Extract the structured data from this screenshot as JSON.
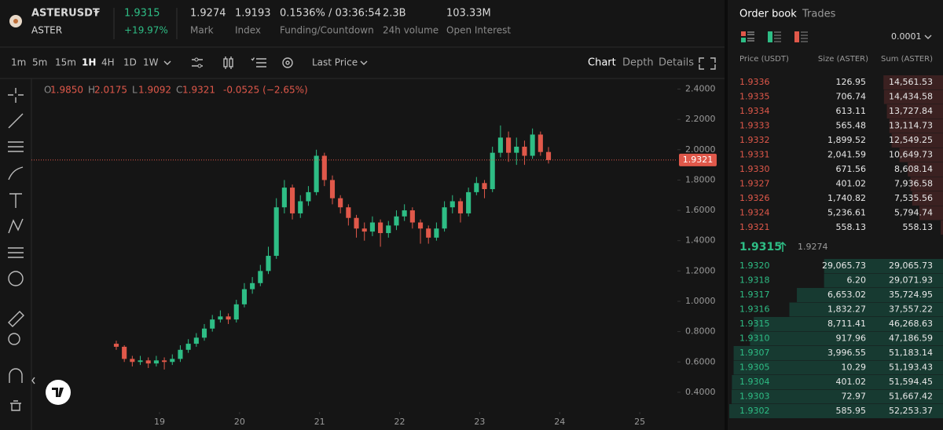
{
  "header": {
    "symbol": "ASTERUSDT",
    "base": "ASTER",
    "last_price": "1.9315",
    "change": "+19.97%",
    "stats": [
      {
        "value": "1.9274",
        "label": "Mark"
      },
      {
        "value": "1.9193",
        "label": "Index"
      },
      {
        "value": "0.1536% / 03:36:54",
        "label": "Funding/Countdown"
      },
      {
        "value": "2.3B",
        "label": "24h volume"
      },
      {
        "value": "103.33M",
        "label": "Open Interest"
      }
    ]
  },
  "toolbar": {
    "intervals": [
      "1m",
      "5m",
      "15m",
      "1H",
      "4H",
      "1D",
      "1W"
    ],
    "active_interval": 3,
    "price_type": "Last Price",
    "views": [
      "Chart",
      "Depth",
      "Details"
    ],
    "active_view": 0
  },
  "chart_data": {
    "type": "candlestick",
    "x": [
      18.46,
      18.56,
      18.66,
      18.76,
      18.86,
      18.96,
      19.06,
      19.16,
      19.26,
      19.36,
      19.46,
      19.56,
      19.66,
      19.76,
      19.86,
      19.96,
      20.06,
      20.16,
      20.26,
      20.36,
      20.46,
      20.56,
      20.66,
      20.76,
      20.86,
      20.96,
      21.06,
      21.16,
      21.26,
      21.36,
      21.46,
      21.56,
      21.66,
      21.76,
      21.86,
      21.96,
      22.06,
      22.16,
      22.26,
      22.36,
      22.46,
      22.56,
      22.66,
      22.76,
      22.86,
      22.96,
      23.06,
      23.16,
      23.26,
      23.36,
      23.46,
      23.56,
      23.66,
      23.76,
      23.86
    ],
    "open": [
      0.72,
      0.7,
      0.62,
      0.6,
      0.61,
      0.59,
      0.61,
      0.6,
      0.62,
      0.68,
      0.72,
      0.76,
      0.82,
      0.88,
      0.9,
      0.88,
      0.98,
      1.08,
      1.12,
      1.2,
      1.3,
      1.62,
      1.75,
      1.58,
      1.66,
      1.72,
      1.96,
      1.8,
      1.68,
      1.62,
      1.55,
      1.48,
      1.46,
      1.52,
      1.45,
      1.5,
      1.56,
      1.6,
      1.52,
      1.48,
      1.42,
      1.48,
      1.62,
      1.66,
      1.58,
      1.72,
      1.78,
      1.74,
      1.98,
      2.08,
      1.98,
      2.02,
      1.96,
      2.1,
      1.985
    ],
    "high": [
      0.74,
      0.71,
      0.64,
      0.64,
      0.63,
      0.64,
      0.63,
      0.65,
      0.71,
      0.75,
      0.79,
      0.85,
      0.91,
      0.94,
      0.92,
      1.01,
      1.12,
      1.16,
      1.24,
      1.36,
      1.68,
      1.8,
      1.77,
      1.7,
      1.76,
      2.0,
      1.98,
      1.83,
      1.7,
      1.64,
      1.57,
      1.52,
      1.56,
      1.54,
      1.53,
      1.6,
      1.64,
      1.62,
      1.54,
      1.5,
      1.52,
      1.66,
      1.7,
      1.68,
      1.75,
      1.82,
      1.8,
      2.02,
      2.16,
      2.12,
      2.08,
      2.06,
      2.14,
      2.12,
      2.0175
    ],
    "low": [
      0.68,
      0.6,
      0.57,
      0.58,
      0.56,
      0.57,
      0.55,
      0.58,
      0.6,
      0.66,
      0.7,
      0.74,
      0.8,
      0.86,
      0.85,
      0.86,
      0.96,
      1.05,
      1.1,
      1.18,
      1.28,
      1.58,
      1.54,
      1.55,
      1.63,
      1.7,
      1.76,
      1.64,
      1.58,
      1.5,
      1.42,
      1.4,
      1.43,
      1.36,
      1.42,
      1.47,
      1.53,
      1.48,
      1.38,
      1.38,
      1.4,
      1.46,
      1.58,
      1.52,
      1.56,
      1.7,
      1.68,
      1.72,
      1.95,
      1.92,
      1.9,
      1.9,
      1.94,
      1.96,
      1.9092
    ],
    "close": [
      0.7,
      0.62,
      0.6,
      0.61,
      0.59,
      0.61,
      0.6,
      0.62,
      0.68,
      0.72,
      0.76,
      0.82,
      0.88,
      0.9,
      0.88,
      0.98,
      1.08,
      1.12,
      1.2,
      1.3,
      1.62,
      1.75,
      1.58,
      1.66,
      1.72,
      1.96,
      1.8,
      1.68,
      1.62,
      1.55,
      1.48,
      1.46,
      1.52,
      1.45,
      1.5,
      1.56,
      1.6,
      1.52,
      1.48,
      1.42,
      1.48,
      1.62,
      1.66,
      1.58,
      1.72,
      1.78,
      1.74,
      1.98,
      2.08,
      1.98,
      2.02,
      1.96,
      2.1,
      1.985,
      1.9321
    ],
    "xlim": [
      17.4,
      25.47
    ],
    "xticks": [
      19,
      20,
      21,
      22,
      23,
      24,
      25
    ],
    "ylim": [
      0.27,
      2.47
    ],
    "yticks": [
      {
        "value": 0.4,
        "label": "0.4000"
      },
      {
        "value": 0.6,
        "label": "0.6000"
      },
      {
        "value": 0.8,
        "label": "0.8000"
      },
      {
        "value": 1.0,
        "label": "1.0000"
      },
      {
        "value": 1.2,
        "label": "1.2000"
      },
      {
        "value": 1.4,
        "label": "1.4000"
      },
      {
        "value": 1.6,
        "label": "1.6000"
      },
      {
        "value": 1.8,
        "label": "1.8000"
      },
      {
        "value": 2.0,
        "label": "2.0000"
      },
      {
        "value": 2.2,
        "label": "2.2000"
      },
      {
        "value": 2.4,
        "label": "2.4000"
      }
    ],
    "up_color": "#2ebd85",
    "down_color": "#e0584a",
    "current_price": {
      "value": 1.9321,
      "label": "1.9321"
    },
    "ohlc_legend": {
      "open_label": "O",
      "open": "1.9850",
      "high_label": "H",
      "high": "2.0175",
      "low_label": "L",
      "low": "1.9092",
      "close_label": "C",
      "close": "1.9321",
      "change": "-0.0525 (−2.65%)"
    }
  },
  "order_book": {
    "tabs": [
      "Order book",
      "Trades"
    ],
    "precision": "0.0001",
    "columns": [
      "Price (USDT)",
      "Size (ASTER)",
      "Sum (ASTER)"
    ],
    "asks": [
      [
        "1.9336",
        "126.95",
        "14,561.53"
      ],
      [
        "1.9335",
        "706.74",
        "14,434.58"
      ],
      [
        "1.9334",
        "613.11",
        "13,727.84"
      ],
      [
        "1.9333",
        "565.48",
        "13,114.73"
      ],
      [
        "1.9332",
        "1,899.52",
        "12,549.25"
      ],
      [
        "1.9331",
        "2,041.59",
        "10,649.73"
      ],
      [
        "1.9330",
        "671.56",
        "8,608.14"
      ],
      [
        "1.9327",
        "401.02",
        "7,936.58"
      ],
      [
        "1.9326",
        "1,740.82",
        "7,535.56"
      ],
      [
        "1.9324",
        "5,236.61",
        "5,794.74"
      ],
      [
        "1.9321",
        "558.13",
        "558.13"
      ]
    ],
    "mid_price": "1.9315",
    "mark_price": "1.9274",
    "bids": [
      [
        "1.9320",
        "29,065.73",
        "29,065.73"
      ],
      [
        "1.9318",
        "6.20",
        "29,071.93"
      ],
      [
        "1.9317",
        "6,653.02",
        "35,724.95"
      ],
      [
        "1.9316",
        "1,832.27",
        "37,557.22"
      ],
      [
        "1.9315",
        "8,711.41",
        "46,268.63"
      ],
      [
        "1.9310",
        "917.96",
        "47,186.59"
      ],
      [
        "1.9307",
        "3,996.55",
        "51,183.14"
      ],
      [
        "1.9305",
        "10.29",
        "51,193.43"
      ],
      [
        "1.9304",
        "401.02",
        "51,594.45"
      ],
      [
        "1.9303",
        "72.97",
        "51,667.42"
      ],
      [
        "1.9302",
        "585.95",
        "52,253.37"
      ]
    ]
  }
}
